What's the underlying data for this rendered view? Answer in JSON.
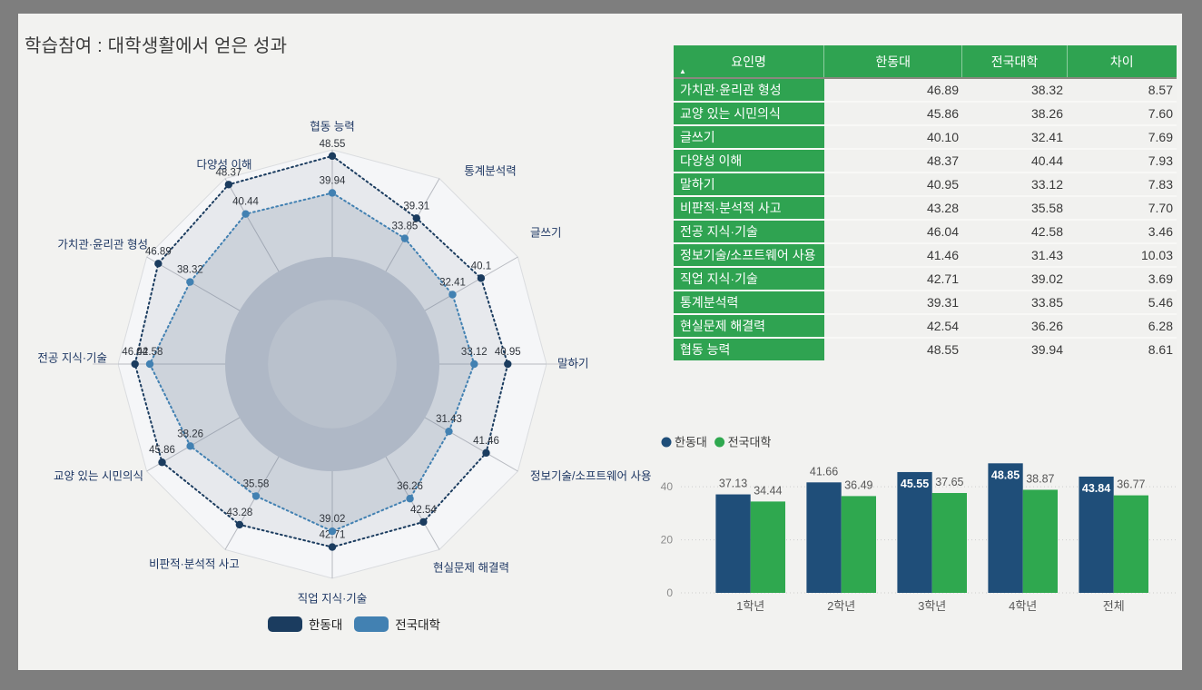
{
  "title": "학습참여 : 대학생활에서 얻은 성과",
  "colors": {
    "outer_background": "#7e7e7e",
    "panel_background": "#f2f2f0",
    "handong_navy": "#1b3c5f",
    "national_steelblue": "#4281b2",
    "bar_navy": "#1f4e79",
    "bar_green": "#2fa84f",
    "table_green": "#2fa351",
    "axis_label_navy": "#1f3864",
    "value_label_gray": "#575757",
    "tick_gray": "#8b8b8b"
  },
  "chart_data": [
    {
      "type": "radar",
      "title": "",
      "scale_max": 50,
      "grid": "circular-bands",
      "legend_position": "bottom",
      "axes": [
        "협동 능력",
        "통계분석력",
        "글쓰기",
        "말하기",
        "정보기술/소프트웨어 사용",
        "현실문제 해결력",
        "직업 지식·기술",
        "비판적·분석적 사고",
        "교양 있는 시민의식",
        "전공 지식·기술",
        "가치관·윤리관 형성",
        "다양성 이해"
      ],
      "series": [
        {
          "name": "한동대",
          "color": "#1b3c5f",
          "values": [
            48.55,
            39.31,
            40.1,
            40.95,
            41.46,
            42.54,
            42.71,
            43.28,
            45.86,
            46.04,
            46.89,
            48.37
          ]
        },
        {
          "name": "전국대학",
          "color": "#4281b2",
          "values": [
            39.94,
            33.85,
            32.41,
            33.12,
            31.43,
            36.26,
            39.02,
            35.58,
            38.26,
            42.58,
            38.32,
            40.44
          ]
        }
      ]
    },
    {
      "type": "bar",
      "title": "",
      "categories": [
        "1학년",
        "2학년",
        "3학년",
        "4학년",
        "전체"
      ],
      "series": [
        {
          "name": "한동대",
          "color": "#1f4e79",
          "values": [
            37.13,
            41.66,
            45.55,
            48.85,
            43.84
          ],
          "label_inside": [
            false,
            false,
            true,
            true,
            true
          ]
        },
        {
          "name": "전국대학",
          "color": "#2fa84f",
          "values": [
            34.44,
            36.49,
            37.65,
            38.87,
            36.77
          ],
          "label_inside": [
            false,
            false,
            false,
            false,
            false
          ]
        }
      ],
      "ylim": [
        0,
        50
      ],
      "yticks": [
        0,
        20,
        40
      ],
      "grid": "dotted-horizontal",
      "legend_position": "top-left"
    }
  ],
  "table": {
    "headers": [
      "요인명",
      "한동대",
      "전국대학",
      "차이"
    ],
    "sort_icon": "▲",
    "rows": [
      {
        "factor": "가치관·윤리관 형성",
        "handong": "46.89",
        "national": "38.32",
        "diff": "8.57"
      },
      {
        "factor": "교양 있는 시민의식",
        "handong": "45.86",
        "national": "38.26",
        "diff": "7.60"
      },
      {
        "factor": "글쓰기",
        "handong": "40.10",
        "national": "32.41",
        "diff": "7.69"
      },
      {
        "factor": "다양성 이해",
        "handong": "48.37",
        "national": "40.44",
        "diff": "7.93"
      },
      {
        "factor": "말하기",
        "handong": "40.95",
        "national": "33.12",
        "diff": "7.83"
      },
      {
        "factor": "비판적·분석적 사고",
        "handong": "43.28",
        "national": "35.58",
        "diff": "7.70"
      },
      {
        "factor": "전공 지식·기술",
        "handong": "46.04",
        "national": "42.58",
        "diff": "3.46"
      },
      {
        "factor": "정보기술/소프트웨어 사용",
        "handong": "41.46",
        "national": "31.43",
        "diff": "10.03"
      },
      {
        "factor": "직업 지식·기술",
        "handong": "42.71",
        "national": "39.02",
        "diff": "3.69"
      },
      {
        "factor": "통계분석력",
        "handong": "39.31",
        "national": "33.85",
        "diff": "5.46"
      },
      {
        "factor": "현실문제 해결력",
        "handong": "42.54",
        "national": "36.26",
        "diff": "6.28"
      },
      {
        "factor": "협동 능력",
        "handong": "48.55",
        "national": "39.94",
        "diff": "8.61"
      }
    ]
  }
}
